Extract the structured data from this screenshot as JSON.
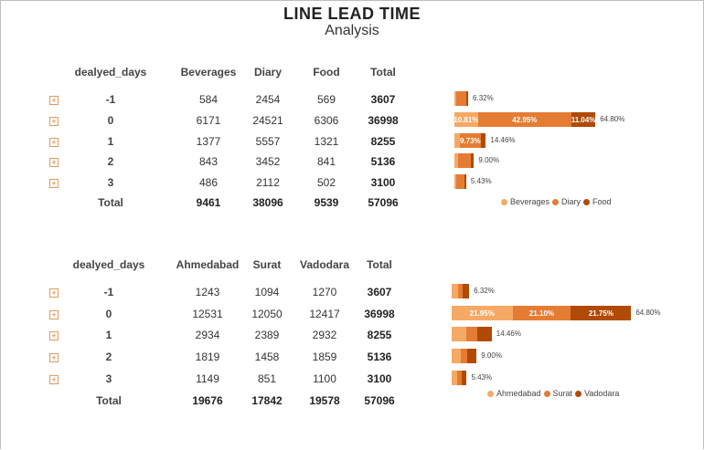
{
  "title": "LINE LEAD TIME",
  "subtitle": "Analysis",
  "colors": {
    "c1": "#f6a964",
    "c2": "#e57c33",
    "c3": "#b04a05"
  },
  "table1": {
    "headers": [
      "dealyed_days",
      "Beverages",
      "Diary",
      "Food",
      "Total"
    ],
    "rows": [
      {
        "label": "-1",
        "v": [
          "584",
          "2454",
          "569",
          "3607"
        ],
        "pct": "6.32%",
        "segs": [
          584,
          2454,
          569
        ],
        "seg_labels": [
          "",
          "",
          ""
        ]
      },
      {
        "label": "0",
        "v": [
          "6171",
          "24521",
          "6306",
          "36998"
        ],
        "pct": "64.80%",
        "segs": [
          6171,
          24521,
          6306
        ],
        "seg_labels": [
          "10.81%",
          "42.95%",
          "11.04%"
        ]
      },
      {
        "label": "1",
        "v": [
          "1377",
          "5557",
          "1321",
          "8255"
        ],
        "pct": "14.46%",
        "segs": [
          1377,
          5557,
          1321
        ],
        "seg_labels": [
          "",
          "9.73%",
          ""
        ]
      },
      {
        "label": "2",
        "v": [
          "843",
          "3452",
          "841",
          "5136"
        ],
        "pct": "9.00%",
        "segs": [
          843,
          3452,
          841
        ],
        "seg_labels": [
          "",
          "",
          ""
        ]
      },
      {
        "label": "3",
        "v": [
          "486",
          "2112",
          "502",
          "3100"
        ],
        "pct": "5.43%",
        "segs": [
          486,
          2112,
          502
        ],
        "seg_labels": [
          "",
          "",
          ""
        ]
      }
    ],
    "total": {
      "label": "Total",
      "v": [
        "9461",
        "38096",
        "9539",
        "57096"
      ]
    },
    "legend": [
      "Beverages",
      "Diary",
      "Food"
    ]
  },
  "table2": {
    "headers": [
      "dealyed_days",
      "Ahmedabad",
      "Surat",
      "Vadodara",
      "Total"
    ],
    "rows": [
      {
        "label": "-1",
        "v": [
          "1243",
          "1094",
          "1270",
          "3607"
        ],
        "pct": "6.32%",
        "segs": [
          1243,
          1094,
          1270
        ],
        "seg_labels": [
          "",
          "",
          ""
        ]
      },
      {
        "label": "0",
        "v": [
          "12531",
          "12050",
          "12417",
          "36998"
        ],
        "pct": "64.80%",
        "segs": [
          12531,
          12050,
          12417
        ],
        "seg_labels": [
          "21.95%",
          "21.10%",
          "21.75%"
        ]
      },
      {
        "label": "1",
        "v": [
          "2934",
          "2389",
          "2932",
          "8255"
        ],
        "pct": "14.46%",
        "segs": [
          2934,
          2389,
          2932
        ],
        "seg_labels": [
          "",
          "",
          ""
        ]
      },
      {
        "label": "2",
        "v": [
          "1819",
          "1458",
          "1859",
          "5136"
        ],
        "pct": "9.00%",
        "segs": [
          1819,
          1458,
          1859
        ],
        "seg_labels": [
          "",
          "",
          ""
        ]
      },
      {
        "label": "3",
        "v": [
          "1149",
          "851",
          "1100",
          "3100"
        ],
        "pct": "5.43%",
        "segs": [
          1149,
          851,
          1100
        ],
        "seg_labels": [
          "",
          "",
          ""
        ]
      }
    ],
    "total": {
      "label": "Total",
      "v": [
        "19676",
        "17842",
        "19578",
        "57096"
      ]
    },
    "legend": [
      "Ahmedabad",
      "Surat",
      "Vadodara"
    ]
  }
}
